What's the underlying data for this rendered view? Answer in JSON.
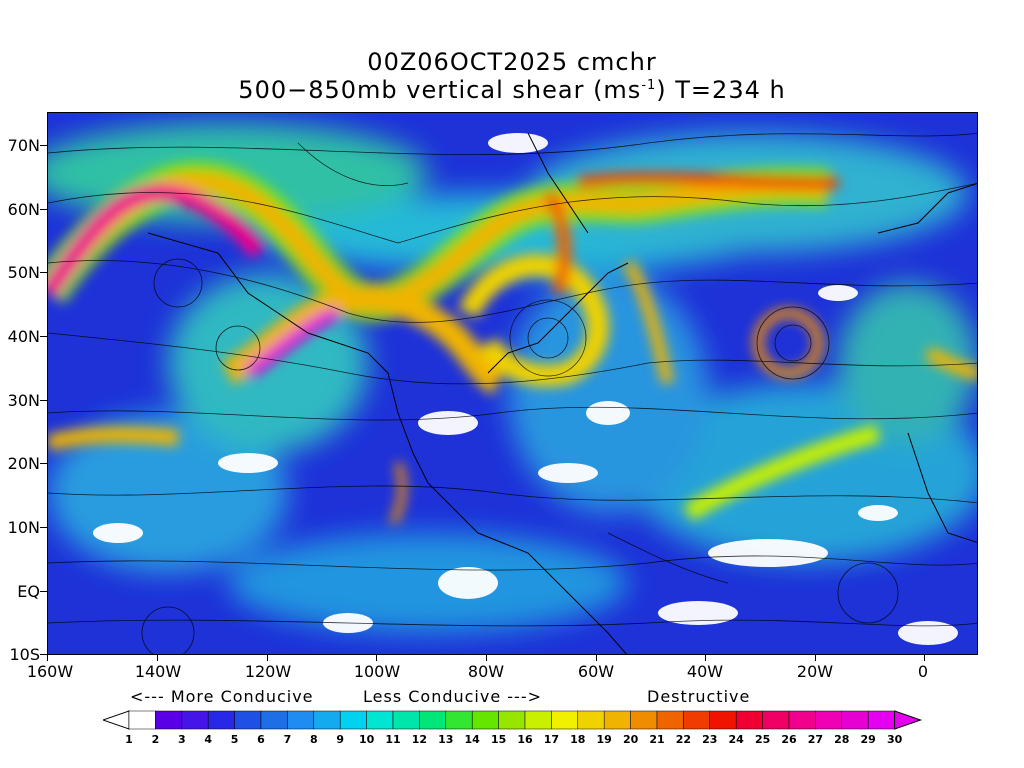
{
  "title_line1": "00Z06OCT2025 cmchr",
  "title_line2_main": "500−850mb vertical shear (ms",
  "title_line2_sup": "-1",
  "title_line2_end": ") T=234 h",
  "y_axis_labels": [
    "70N",
    "60N",
    "50N",
    "40N",
    "30N",
    "20N",
    "10N",
    "EQ",
    "10S"
  ],
  "x_axis_labels": [
    "160W",
    "140W",
    "120W",
    "100W",
    "80W",
    "60W",
    "40W",
    "20W",
    "0"
  ],
  "legend_text": {
    "more": "<--- More Conducive",
    "less": "Less Conducive --->",
    "destructive": "Destructive"
  },
  "colorbar": {
    "labels": [
      "1",
      "2",
      "3",
      "4",
      "5",
      "6",
      "7",
      "8",
      "9",
      "10",
      "11",
      "12",
      "13",
      "14",
      "15",
      "16",
      "17",
      "18",
      "19",
      "20",
      "21",
      "22",
      "23",
      "24",
      "25",
      "26",
      "27",
      "28",
      "29",
      "30"
    ],
    "colors": [
      "#ffffff",
      "#5a00e6",
      "#4414e8",
      "#2828e8",
      "#1e50e6",
      "#1e6ee6",
      "#1e8cf0",
      "#14aaf0",
      "#00d2f0",
      "#00e6d2",
      "#00e6aa",
      "#00e678",
      "#32e632",
      "#64e600",
      "#96e600",
      "#c8f000",
      "#f0f000",
      "#f0d200",
      "#f0b400",
      "#f08c00",
      "#f06400",
      "#f03c00",
      "#f01400",
      "#f00032",
      "#f00064",
      "#f0008c",
      "#f000b4",
      "#e600d2",
      "#e600f0"
    ],
    "under_color": "#ffffff",
    "over_color": "#e600f0"
  }
}
